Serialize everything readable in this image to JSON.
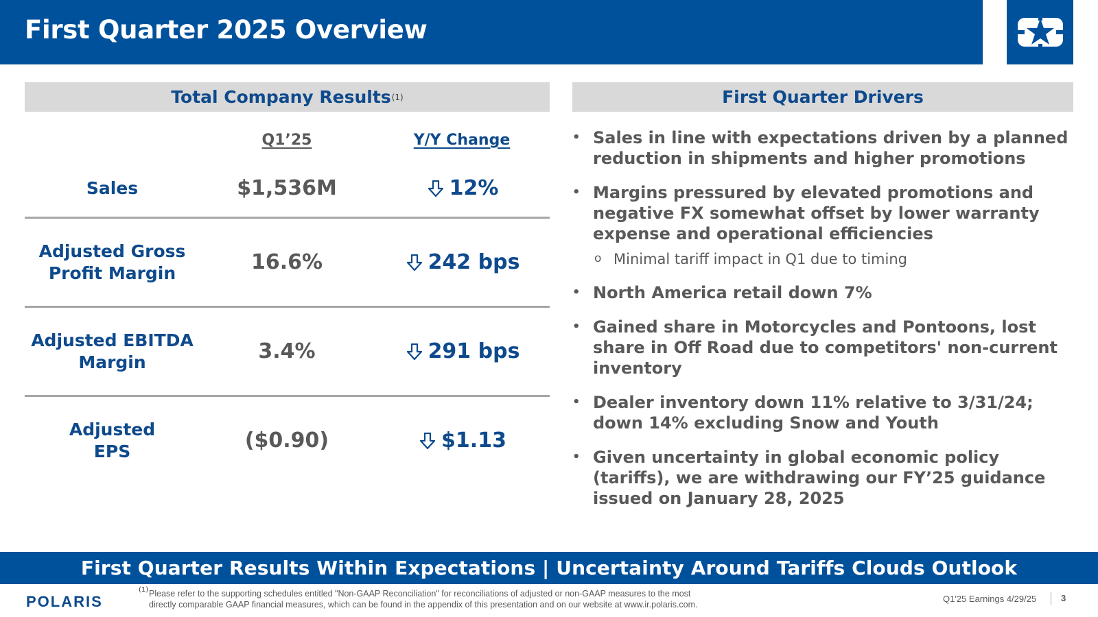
{
  "header": {
    "title": "First Quarter 2025 Overview",
    "logo_icon": "polaris-star-icon"
  },
  "left_panel": {
    "heading": "Total Company Results",
    "heading_footnote": "(1)",
    "col_q1": "Q1’25",
    "col_yy": "Y/Y Change",
    "rows": [
      {
        "label_1": "Sales",
        "label_2": "",
        "value": "$1,536M",
        "change": "12%",
        "direction": "down"
      },
      {
        "label_1": "Adjusted Gross",
        "label_2": "Profit Margin",
        "value": "16.6%",
        "change": "242 bps",
        "direction": "down"
      },
      {
        "label_1": "Adjusted EBITDA",
        "label_2": "Margin",
        "value": "3.4%",
        "change": "291 bps",
        "direction": "down"
      },
      {
        "label_1": "Adjusted",
        "label_2": "EPS",
        "value": "($0.90)",
        "change": "$1.13",
        "direction": "down"
      }
    ]
  },
  "right_panel": {
    "heading": "First Quarter Drivers",
    "bullets": [
      "Sales in line with expectations driven by a planned reduction in shipments and higher promotions",
      "Margins pressured by elevated promotions and negative FX somewhat offset by lower warranty expense and operational efficiencies",
      "North America retail down 7%",
      "Gained share in Motorcycles and Pontoons, lost share in Off Road due to competitors' non-current inventory",
      "Dealer inventory down 11% relative to 3/31/24; down 14% excluding Snow and Youth",
      "Given uncertainty in global economic policy (tariffs), we are withdrawing our FY’25 guidance issued on January 28, 2025"
    ],
    "sub_bullet": "Minimal tariff impact in Q1 due to timing"
  },
  "banner": "First Quarter Results Within Expectations | Uncertainty Around Tariffs Clouds Outlook",
  "footer": {
    "brand": "POLARIS",
    "footnote_mark": "(1)",
    "footnote_line1": "Please refer to the supporting schedules entitled \"Non-GAAP Reconciliation\" for reconciliations of adjusted or non-GAAP measures to the most",
    "footnote_line2": "directly comparable GAAP financial measures, which can be found in the appendix of this presentation and on our website at www.ir.polaris.com.",
    "deck_info": "Q1'25 Earnings 4/29/25",
    "page_number": "3"
  },
  "colors": {
    "brand_blue": "#00519b",
    "heading_blue": "#0e4a8c",
    "text_gray": "#595959",
    "panel_gray": "#d9d9d9"
  }
}
